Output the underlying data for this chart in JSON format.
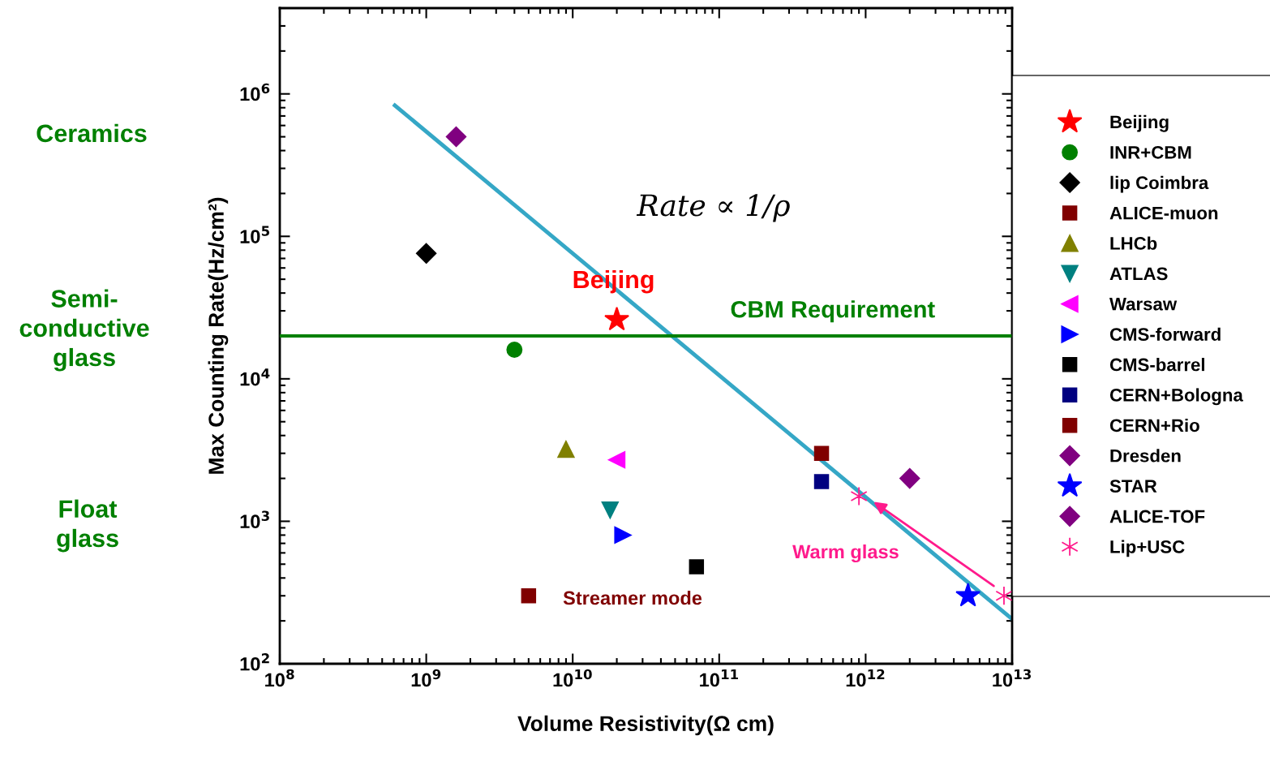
{
  "chart_data": {
    "type": "scatter",
    "xlabel": "Volume Resistivity(Ω cm)",
    "ylabel": "Max Counting Rate(Hz/cm²)",
    "log": "xy",
    "grid": false,
    "legend": "right",
    "xlim": [
      100000000.0,
      10000000000000.0
    ],
    "ylim": [
      100,
      4000000.0
    ],
    "xticks": [
      {
        "value": 100000000.0,
        "label": "10$^{8}$"
      },
      {
        "value": 1000000000.0,
        "label": "10$^{9}$"
      },
      {
        "value": 10000000000.0,
        "label": "10$^{10}$"
      },
      {
        "value": 100000000000.0,
        "label": "10$^{11}$"
      },
      {
        "value": 1000000000000.0,
        "label": "10$^{12}$"
      },
      {
        "value": 10000000000000.0,
        "label": "10$^{13}$"
      }
    ],
    "yticks": [
      {
        "value": 100,
        "label": "10$^{2}$"
      },
      {
        "value": 1000,
        "label": "10$^{3}$"
      },
      {
        "value": 10000,
        "label": "10$^{4}$"
      },
      {
        "value": 100000,
        "label": "10$^{5}$"
      },
      {
        "value": 1000000,
        "label": "10$^{6}$"
      }
    ],
    "series": [
      {
        "type": "line",
        "color": "#35a7c6",
        "x": [
          610000000.0,
          10000000000000.0
        ],
        "values": [
          830000.0,
          206
        ]
      },
      {
        "name": "Beijing",
        "color": "#ff0000",
        "marker": "star",
        "x": [
          20000000000.0
        ],
        "values": [
          26000.0
        ]
      },
      {
        "name": "INR+CBM",
        "color": "#008000",
        "marker": "circle",
        "x": [
          4000000000.0
        ],
        "values": [
          16000.0
        ]
      },
      {
        "name": "lip Coimbra",
        "color": "#000000",
        "marker": "diamond",
        "x": [
          1000000000.0
        ],
        "values": [
          76000.0
        ]
      },
      {
        "name": "ALICE-muon",
        "color": "#800000",
        "marker": "square",
        "x": [
          5000000000.0
        ],
        "values": [
          300
        ]
      },
      {
        "name": "LHCb",
        "color": "#808000",
        "marker": "triangle",
        "x": [
          9000000000.0
        ],
        "values": [
          3200
        ]
      },
      {
        "name": "ATLAS",
        "color": "#008080",
        "marker": "triangle_down",
        "x": [
          18000000000.0
        ],
        "values": [
          1200
        ]
      },
      {
        "name": "Warsaw",
        "color": "#ff00ff",
        "marker": "triangle_left",
        "x": [
          20000000000.0
        ],
        "values": [
          2700
        ]
      },
      {
        "name": "CMS-forward",
        "color": "#0000ff",
        "marker": "triangle_right",
        "x": [
          22000000000.0
        ],
        "values": [
          800
        ]
      },
      {
        "name": "CMS-barrel",
        "color": "#000000",
        "marker": "square",
        "x": [
          70000000000.0
        ],
        "values": [
          480
        ]
      },
      {
        "name": "CERN+Bologna",
        "color": "#000080",
        "marker": "square",
        "x": [
          500000000000.0
        ],
        "values": [
          1900
        ]
      },
      {
        "name": "CERN+Rio",
        "color": "#800000",
        "marker": "square",
        "x": [
          500000000000.0
        ],
        "values": [
          3000
        ]
      },
      {
        "name": "Dresden",
        "color": "#800080",
        "marker": "diamond",
        "x": [
          1600000000.0
        ],
        "values": [
          500000.0
        ]
      },
      {
        "name": "STAR",
        "color": "#0000ff",
        "marker": "star",
        "x": [
          5000000000000.0
        ],
        "values": [
          300
        ]
      },
      {
        "name": "ALICE-TOF",
        "color": "#800080",
        "marker": "diamond",
        "x": [
          2000000000000.0
        ],
        "values": [
          2000
        ]
      },
      {
        "name": "Lip+USC",
        "color": "#ff1a8c",
        "marker": "cross",
        "x": [
          900000000000.0,
          8800000000000.0
        ],
        "values": [
          1500,
          300
        ]
      }
    ],
    "ref_lines": [
      {
        "axis": "y",
        "value": 20000.0,
        "label": "CBM Requirement",
        "color": "#008000"
      }
    ],
    "annotations": [
      {
        "text": "Beijing",
        "x": 19000000000.0,
        "y": 48000.0
      },
      "Rate ∝ 1/ρ",
      "Streamer mode",
      {
        "text": "Warm glass",
        "x": 1100000000000.0,
        "y": 1400
      },
      "Ceramics",
      "Semi-\nconductive\nglass",
      "Float\nglass"
    ]
  }
}
